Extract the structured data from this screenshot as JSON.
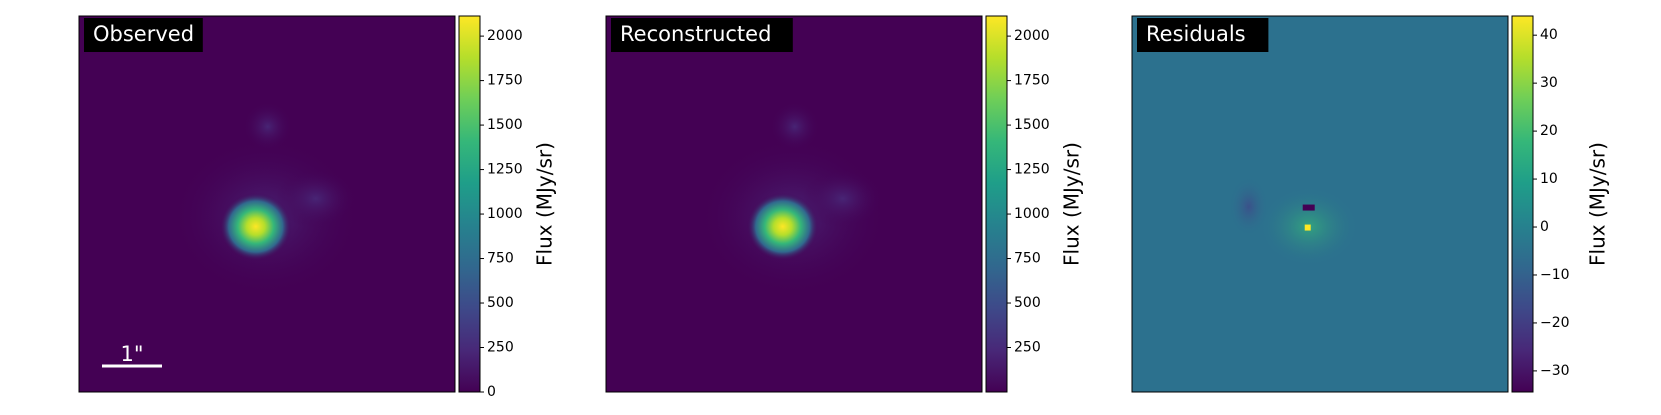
{
  "chart_data": [
    {
      "type": "image",
      "title": "Observed",
      "annotation": "1\"",
      "colorbar_label": "Flux (MJy/sr)",
      "clim": [
        0,
        2113
      ],
      "cticks": [
        0,
        250,
        500,
        750,
        1000,
        1250,
        1500,
        1750,
        2000
      ],
      "colormap": [
        "#440154",
        "#482878",
        "#3e4989",
        "#31688e",
        "#26828e",
        "#1f9e89",
        "#35b779",
        "#6ece58",
        "#b5de2b",
        "#fde725"
      ]
    },
    {
      "type": "image",
      "title": "Reconstructed",
      "colorbar_label": "Flux (MJy/sr)",
      "clim": [
        0,
        2113
      ],
      "cticks": [
        250,
        500,
        750,
        1000,
        1250,
        1500,
        1750,
        2000
      ],
      "colormap": [
        "#440154",
        "#482878",
        "#3e4989",
        "#31688e",
        "#26828e",
        "#1f9e89",
        "#35b779",
        "#6ece58",
        "#b5de2b",
        "#fde725"
      ]
    },
    {
      "type": "image",
      "title": "Residuals",
      "colorbar_label": "Flux (MJy/sr)",
      "clim": [
        -34.4,
        44
      ],
      "cticks": [
        {
          "value": -30,
          "label": "−30"
        },
        {
          "value": -20,
          "label": "−20"
        },
        {
          "value": -10,
          "label": "−10"
        },
        0,
        10,
        20,
        30,
        40
      ],
      "colormap": [
        "#440154",
        "#482878",
        "#3e4989",
        "#31688e",
        "#26828e",
        "#1f9e89",
        "#35b779",
        "#6ece58",
        "#b5de2b",
        "#fde725"
      ]
    }
  ]
}
